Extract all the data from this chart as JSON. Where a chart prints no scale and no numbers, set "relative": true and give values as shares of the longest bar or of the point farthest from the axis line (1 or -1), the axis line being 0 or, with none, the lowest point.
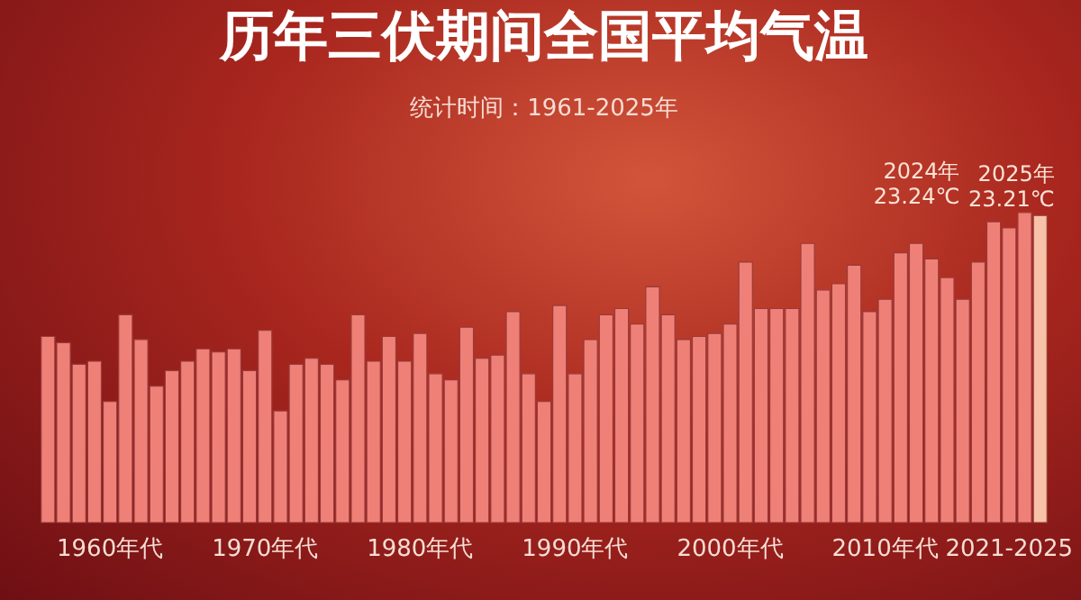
{
  "chart_data": {
    "type": "bar",
    "title": "历年三伏期间全国平均气温",
    "subtitle": "统计时间：1961-2025年",
    "relative": true,
    "tick_labels": "x",
    "categories": [
      null,
      null,
      null,
      null,
      "1960年代",
      null,
      null,
      null,
      null,
      null,
      null,
      null,
      null,
      null,
      "1970年代",
      null,
      null,
      null,
      null,
      null,
      null,
      null,
      null,
      null,
      "1980年代",
      null,
      null,
      null,
      null,
      null,
      null,
      null,
      null,
      null,
      "1990年代",
      null,
      null,
      null,
      null,
      null,
      null,
      null,
      null,
      null,
      "2000年代",
      null,
      null,
      null,
      null,
      null,
      null,
      null,
      null,
      null,
      "2010年代",
      null,
      null,
      null,
      null,
      null,
      null,
      null,
      "2021-2025",
      null,
      null
    ],
    "values": [
      0.6,
      0.58,
      0.51,
      0.52,
      0.39,
      0.67,
      0.59,
      0.44,
      0.49,
      0.52,
      0.56,
      0.55,
      0.56,
      0.49,
      0.62,
      0.36,
      0.51,
      0.53,
      0.51,
      0.46,
      0.67,
      0.52,
      0.6,
      0.52,
      0.61,
      0.48,
      0.46,
      0.63,
      0.53,
      0.54,
      0.68,
      0.48,
      0.39,
      0.7,
      0.48,
      0.59,
      0.67,
      0.69,
      0.64,
      0.76,
      0.67,
      0.59,
      0.6,
      0.61,
      0.64,
      0.84,
      0.69,
      0.69,
      0.69,
      0.9,
      0.75,
      0.77,
      0.83,
      0.68,
      0.72,
      0.87,
      0.9,
      0.85,
      0.79,
      0.72,
      0.84,
      0.97,
      0.95,
      1,
      0.99
    ],
    "colors": [
      "#ef8078",
      "#ef8078",
      "#ef8078",
      "#ef8078",
      "#ef8078",
      "#ef8078",
      "#ef8078",
      "#ef8078",
      "#ef8078",
      "#ef8078",
      "#ef8078",
      "#ef8078",
      "#ef8078",
      "#ef8078",
      "#ef8078",
      "#ef8078",
      "#ef8078",
      "#ef8078",
      "#ef8078",
      "#ef8078",
      "#ef8078",
      "#ef8078",
      "#ef8078",
      "#ef8078",
      "#ef8078",
      "#ef8078",
      "#ef8078",
      "#ef8078",
      "#ef8078",
      "#ef8078",
      "#ef8078",
      "#ef8078",
      "#ef8078",
      "#ef8078",
      "#ef8078",
      "#ef8078",
      "#ef8078",
      "#ef8078",
      "#ef8078",
      "#ef8078",
      "#ef8078",
      "#ef8078",
      "#ef8078",
      "#ef8078",
      "#ef8078",
      "#ef8078",
      "#ef8078",
      "#ef8078",
      "#ef8078",
      "#ef8078",
      "#ef8078",
      "#ef8078",
      "#ef8078",
      "#ef8078",
      "#ef8078",
      "#ef8078",
      "#ef8078",
      "#ef8078",
      "#ef8078",
      "#ef8078",
      "#ef8078",
      "#ef8078",
      "#ef8078",
      "#ef8078",
      "#f7c2a8"
    ],
    "annotations": [
      "2024年\n23.24℃",
      "2025年\n23.21℃"
    ]
  }
}
